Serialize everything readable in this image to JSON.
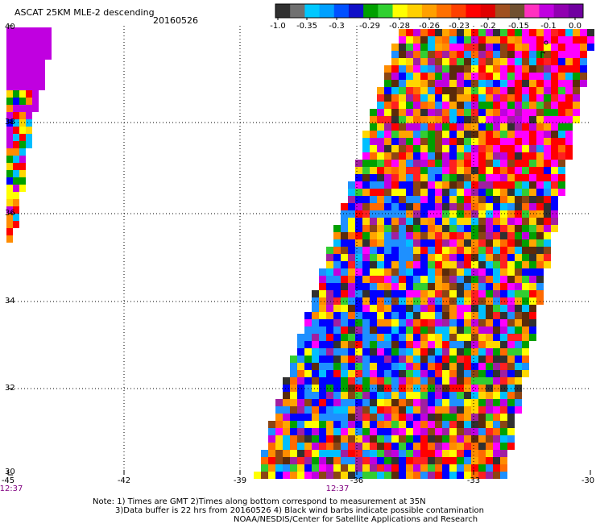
{
  "header": {
    "title": "ASCAT 25KM MLE-2 descending",
    "date": "20160526"
  },
  "colorbar": {
    "tick_labels": [
      "-1.0",
      "-0.35",
      "-0.3",
      "-0.29",
      "-0.28",
      "-0.26",
      "-0.23",
      "-0.2",
      "-0.15",
      "-0.1",
      "0.0"
    ],
    "colors": [
      "#303030",
      "#707070",
      "#00c8ff",
      "#00a0ff",
      "#0050ff",
      "#1010c8",
      "#00a000",
      "#30d030",
      "#ffff00",
      "#ffd000",
      "#ffa000",
      "#ff7000",
      "#ff4000",
      "#ff0000",
      "#e00000",
      "#a05020",
      "#705030",
      "#ff30c0",
      "#c000e0",
      "#9000b0",
      "#7000a0"
    ]
  },
  "axes": {
    "lat_labels": [
      "40",
      "38",
      "36",
      "34",
      "32",
      "30"
    ],
    "lon_labels": [
      "-45",
      "-42",
      "-39",
      "-36",
      "-33",
      "-30"
    ],
    "time_labels": [
      "12:37",
      "12:37"
    ]
  },
  "notes": {
    "line1": "Note: 1) Times are GMT 2)Times along bottom correspond to measurement at 35N",
    "line2": "3)Data buffer is 22 hrs from 20160526 4) Black wind barbs indicate possible contamination",
    "line3": "NOAA/NESDIS/Center for Satellite Applications and Research"
  },
  "swath_palette": [
    "#ff0000",
    "#ff2020",
    "#ff6a00",
    "#ff8c00",
    "#ffa500",
    "#ffd700",
    "#ffff00",
    "#ff00ff",
    "#c000e0",
    "#a020a0",
    "#8b4513",
    "#5a2a0a",
    "#303030",
    "#00a000",
    "#32cd32",
    "#00bfff",
    "#1e90ff",
    "#0000ff"
  ],
  "west_swath_palette": [
    "#c000e0",
    "#ffff00",
    "#ffd700",
    "#ff0000",
    "#00a000",
    "#00bfff",
    "#0000ff",
    "#ff8c00"
  ]
}
